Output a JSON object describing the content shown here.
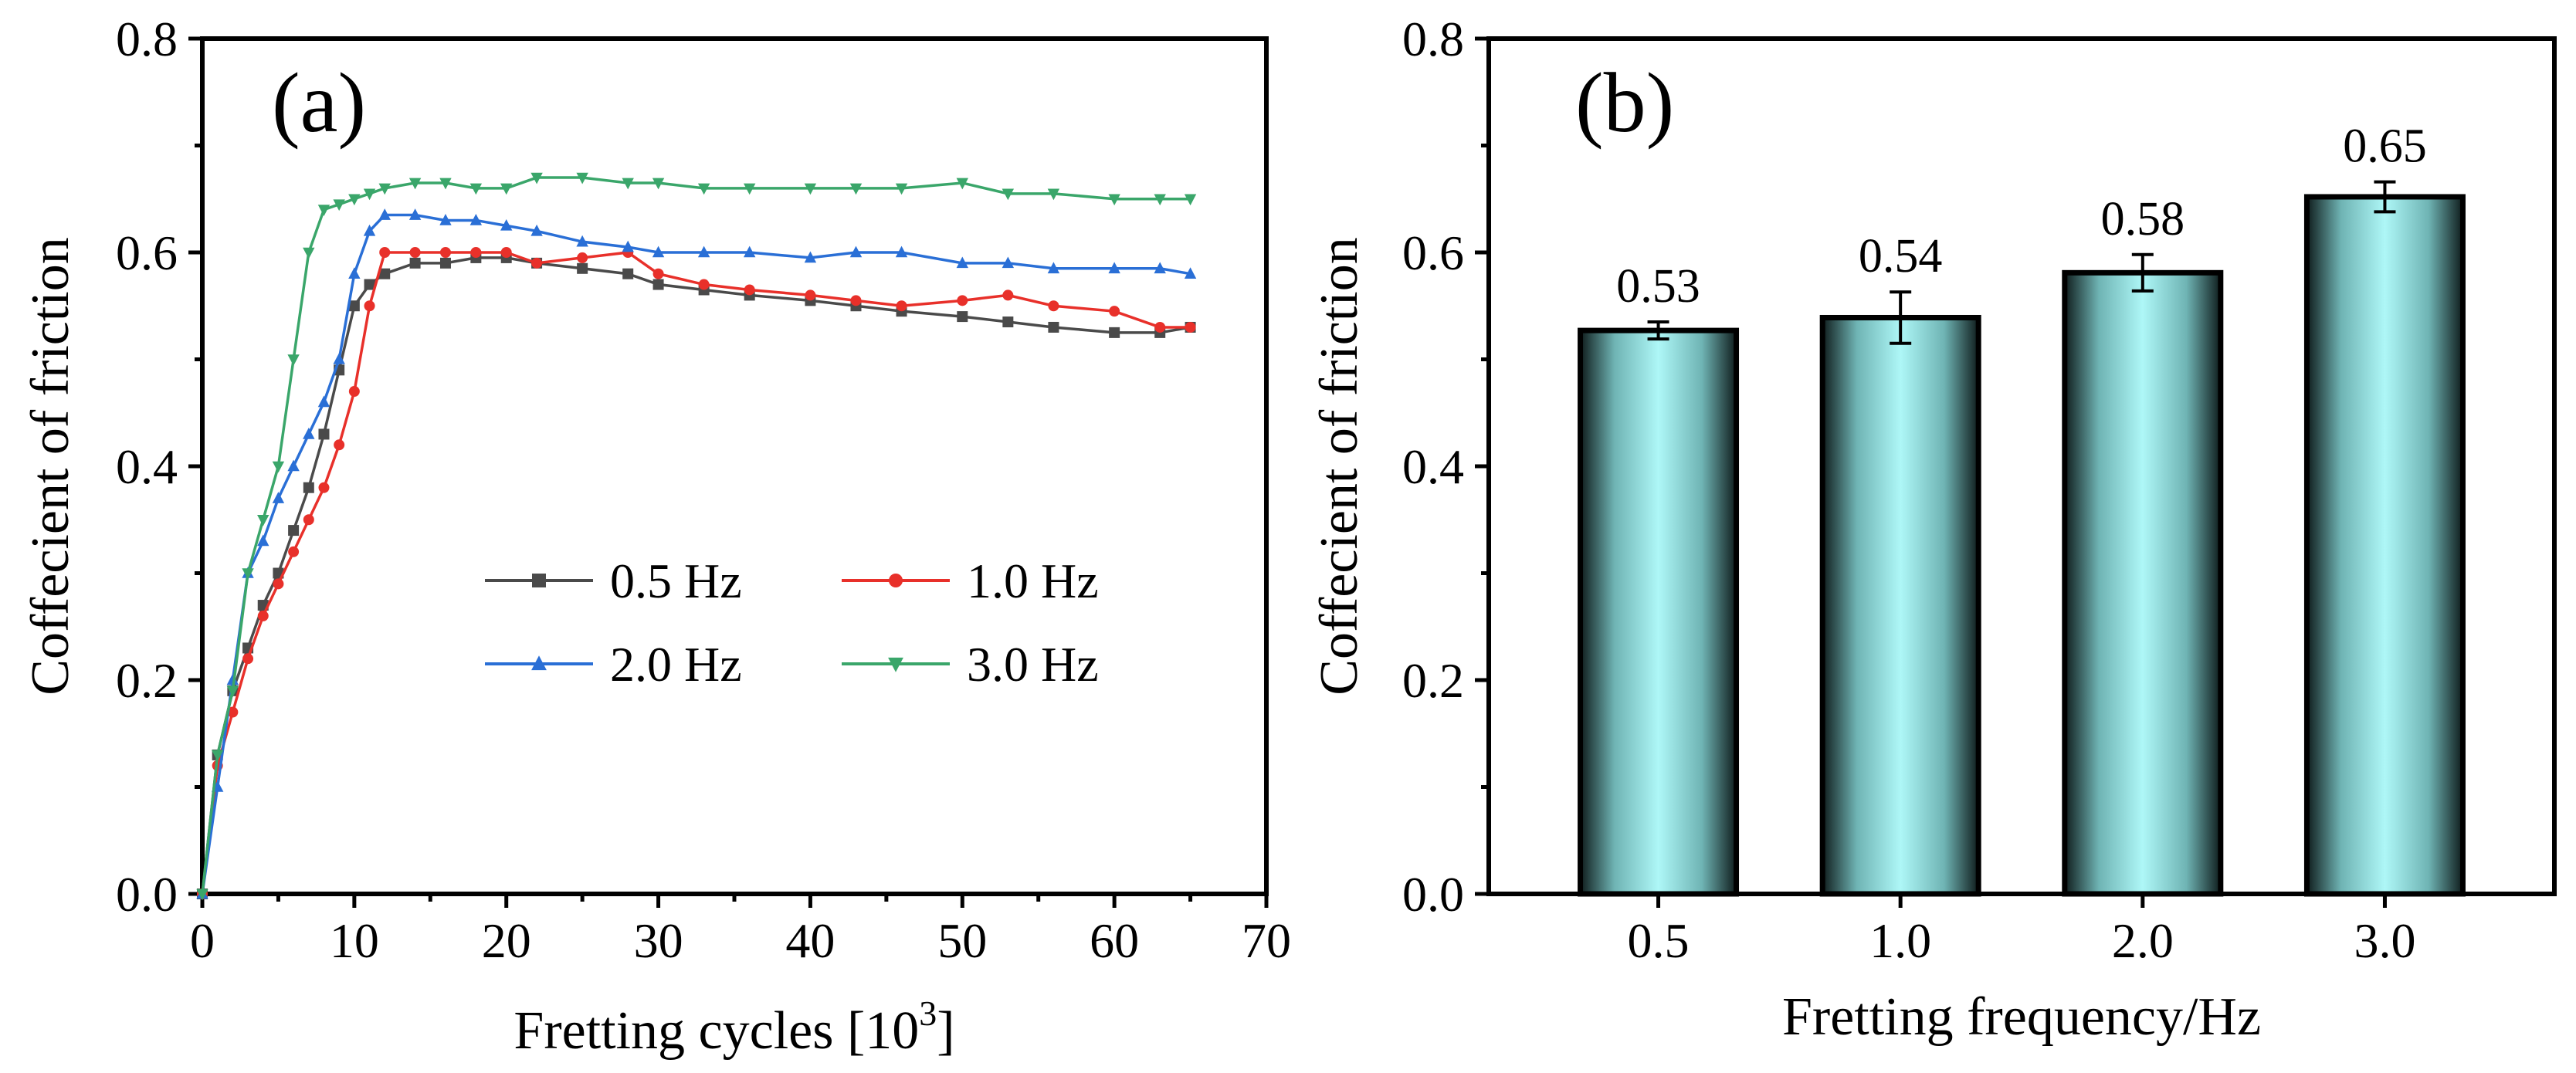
{
  "colors": {
    "series": [
      "#4a4a4a",
      "#e8302a",
      "#2a6fd6",
      "#3aa66a"
    ],
    "bar_edge": "#000000",
    "bar_center": "#aef7f7",
    "bar_side": "#0f1c1c"
  },
  "chart_data": [
    {
      "type": "line",
      "panel_label": "(a)",
      "xlabel": "Fretting cycles [10",
      "xlabel_sup": "3",
      "xlabel_suffix": "]",
      "ylabel": "Coffecient of friction",
      "xlim": [
        0,
        70
      ],
      "ylim": [
        0,
        0.8
      ],
      "x_ticks": [
        "0",
        "10",
        "20",
        "30",
        "40",
        "50",
        "60",
        "70"
      ],
      "y_ticks": [
        "0.0",
        "0.2",
        "0.4",
        "0.6",
        "0.8"
      ],
      "legend_position": "center-right",
      "series": [
        {
          "name": "0.5 Hz",
          "marker": "square",
          "color": "#4a4a4a",
          "x": [
            0,
            1,
            2,
            3,
            4,
            5,
            6,
            7,
            8,
            9,
            10,
            11,
            12,
            14,
            16,
            18,
            20,
            22,
            25,
            28,
            30,
            33,
            36,
            40,
            43,
            46,
            50,
            53,
            56,
            60,
            63,
            65
          ],
          "y": [
            0,
            0.13,
            0.19,
            0.23,
            0.27,
            0.3,
            0.34,
            0.38,
            0.43,
            0.49,
            0.55,
            0.57,
            0.58,
            0.59,
            0.59,
            0.595,
            0.595,
            0.59,
            0.585,
            0.58,
            0.57,
            0.565,
            0.56,
            0.555,
            0.55,
            0.545,
            0.54,
            0.535,
            0.53,
            0.525,
            0.525,
            0.53
          ]
        },
        {
          "name": "1.0 Hz",
          "marker": "circle",
          "color": "#e8302a",
          "x": [
            0,
            1,
            2,
            3,
            4,
            5,
            6,
            7,
            8,
            9,
            10,
            11,
            12,
            14,
            16,
            18,
            20,
            22,
            25,
            28,
            30,
            33,
            36,
            40,
            43,
            46,
            50,
            53,
            56,
            60,
            63,
            65
          ],
          "y": [
            0,
            0.12,
            0.17,
            0.22,
            0.26,
            0.29,
            0.32,
            0.35,
            0.38,
            0.42,
            0.47,
            0.55,
            0.6,
            0.6,
            0.6,
            0.6,
            0.6,
            0.59,
            0.595,
            0.6,
            0.58,
            0.57,
            0.565,
            0.56,
            0.555,
            0.55,
            0.555,
            0.56,
            0.55,
            0.545,
            0.53,
            0.53
          ]
        },
        {
          "name": "2.0 Hz",
          "marker": "triangle-up",
          "color": "#2a6fd6",
          "x": [
            0,
            1,
            2,
            3,
            4,
            5,
            6,
            7,
            8,
            9,
            10,
            11,
            12,
            14,
            16,
            18,
            20,
            22,
            25,
            28,
            30,
            33,
            36,
            40,
            43,
            46,
            50,
            53,
            56,
            60,
            63,
            65
          ],
          "y": [
            0,
            0.1,
            0.2,
            0.3,
            0.33,
            0.37,
            0.4,
            0.43,
            0.46,
            0.5,
            0.58,
            0.62,
            0.635,
            0.635,
            0.63,
            0.63,
            0.625,
            0.62,
            0.61,
            0.605,
            0.6,
            0.6,
            0.6,
            0.595,
            0.6,
            0.6,
            0.59,
            0.59,
            0.585,
            0.585,
            0.585,
            0.58
          ]
        },
        {
          "name": "3.0 Hz",
          "marker": "triangle-down",
          "color": "#3aa66a",
          "x": [
            0,
            1,
            2,
            3,
            4,
            5,
            6,
            7,
            8,
            9,
            10,
            11,
            12,
            14,
            16,
            18,
            20,
            22,
            25,
            28,
            30,
            33,
            36,
            40,
            43,
            46,
            50,
            53,
            56,
            60,
            63,
            65
          ],
          "y": [
            0,
            0.13,
            0.19,
            0.3,
            0.35,
            0.4,
            0.5,
            0.6,
            0.64,
            0.645,
            0.65,
            0.655,
            0.66,
            0.665,
            0.665,
            0.66,
            0.66,
            0.67,
            0.67,
            0.665,
            0.665,
            0.66,
            0.66,
            0.66,
            0.66,
            0.66,
            0.665,
            0.655,
            0.655,
            0.65,
            0.65,
            0.65
          ]
        }
      ]
    },
    {
      "type": "bar",
      "panel_label": "(b)",
      "xlabel": "Fretting frequency/Hz",
      "ylabel": "Coffecient of friction",
      "ylim": [
        0,
        0.8
      ],
      "y_ticks": [
        "0.0",
        "0.2",
        "0.4",
        "0.6",
        "0.8"
      ],
      "categories": [
        "0.5",
        "1.0",
        "2.0",
        "3.0"
      ],
      "values": [
        0.527,
        0.539,
        0.581,
        0.652
      ],
      "errors": [
        0.008,
        0.024,
        0.017,
        0.014
      ],
      "labels": [
        "0.53",
        "0.54",
        "0.58",
        "0.65"
      ]
    }
  ]
}
